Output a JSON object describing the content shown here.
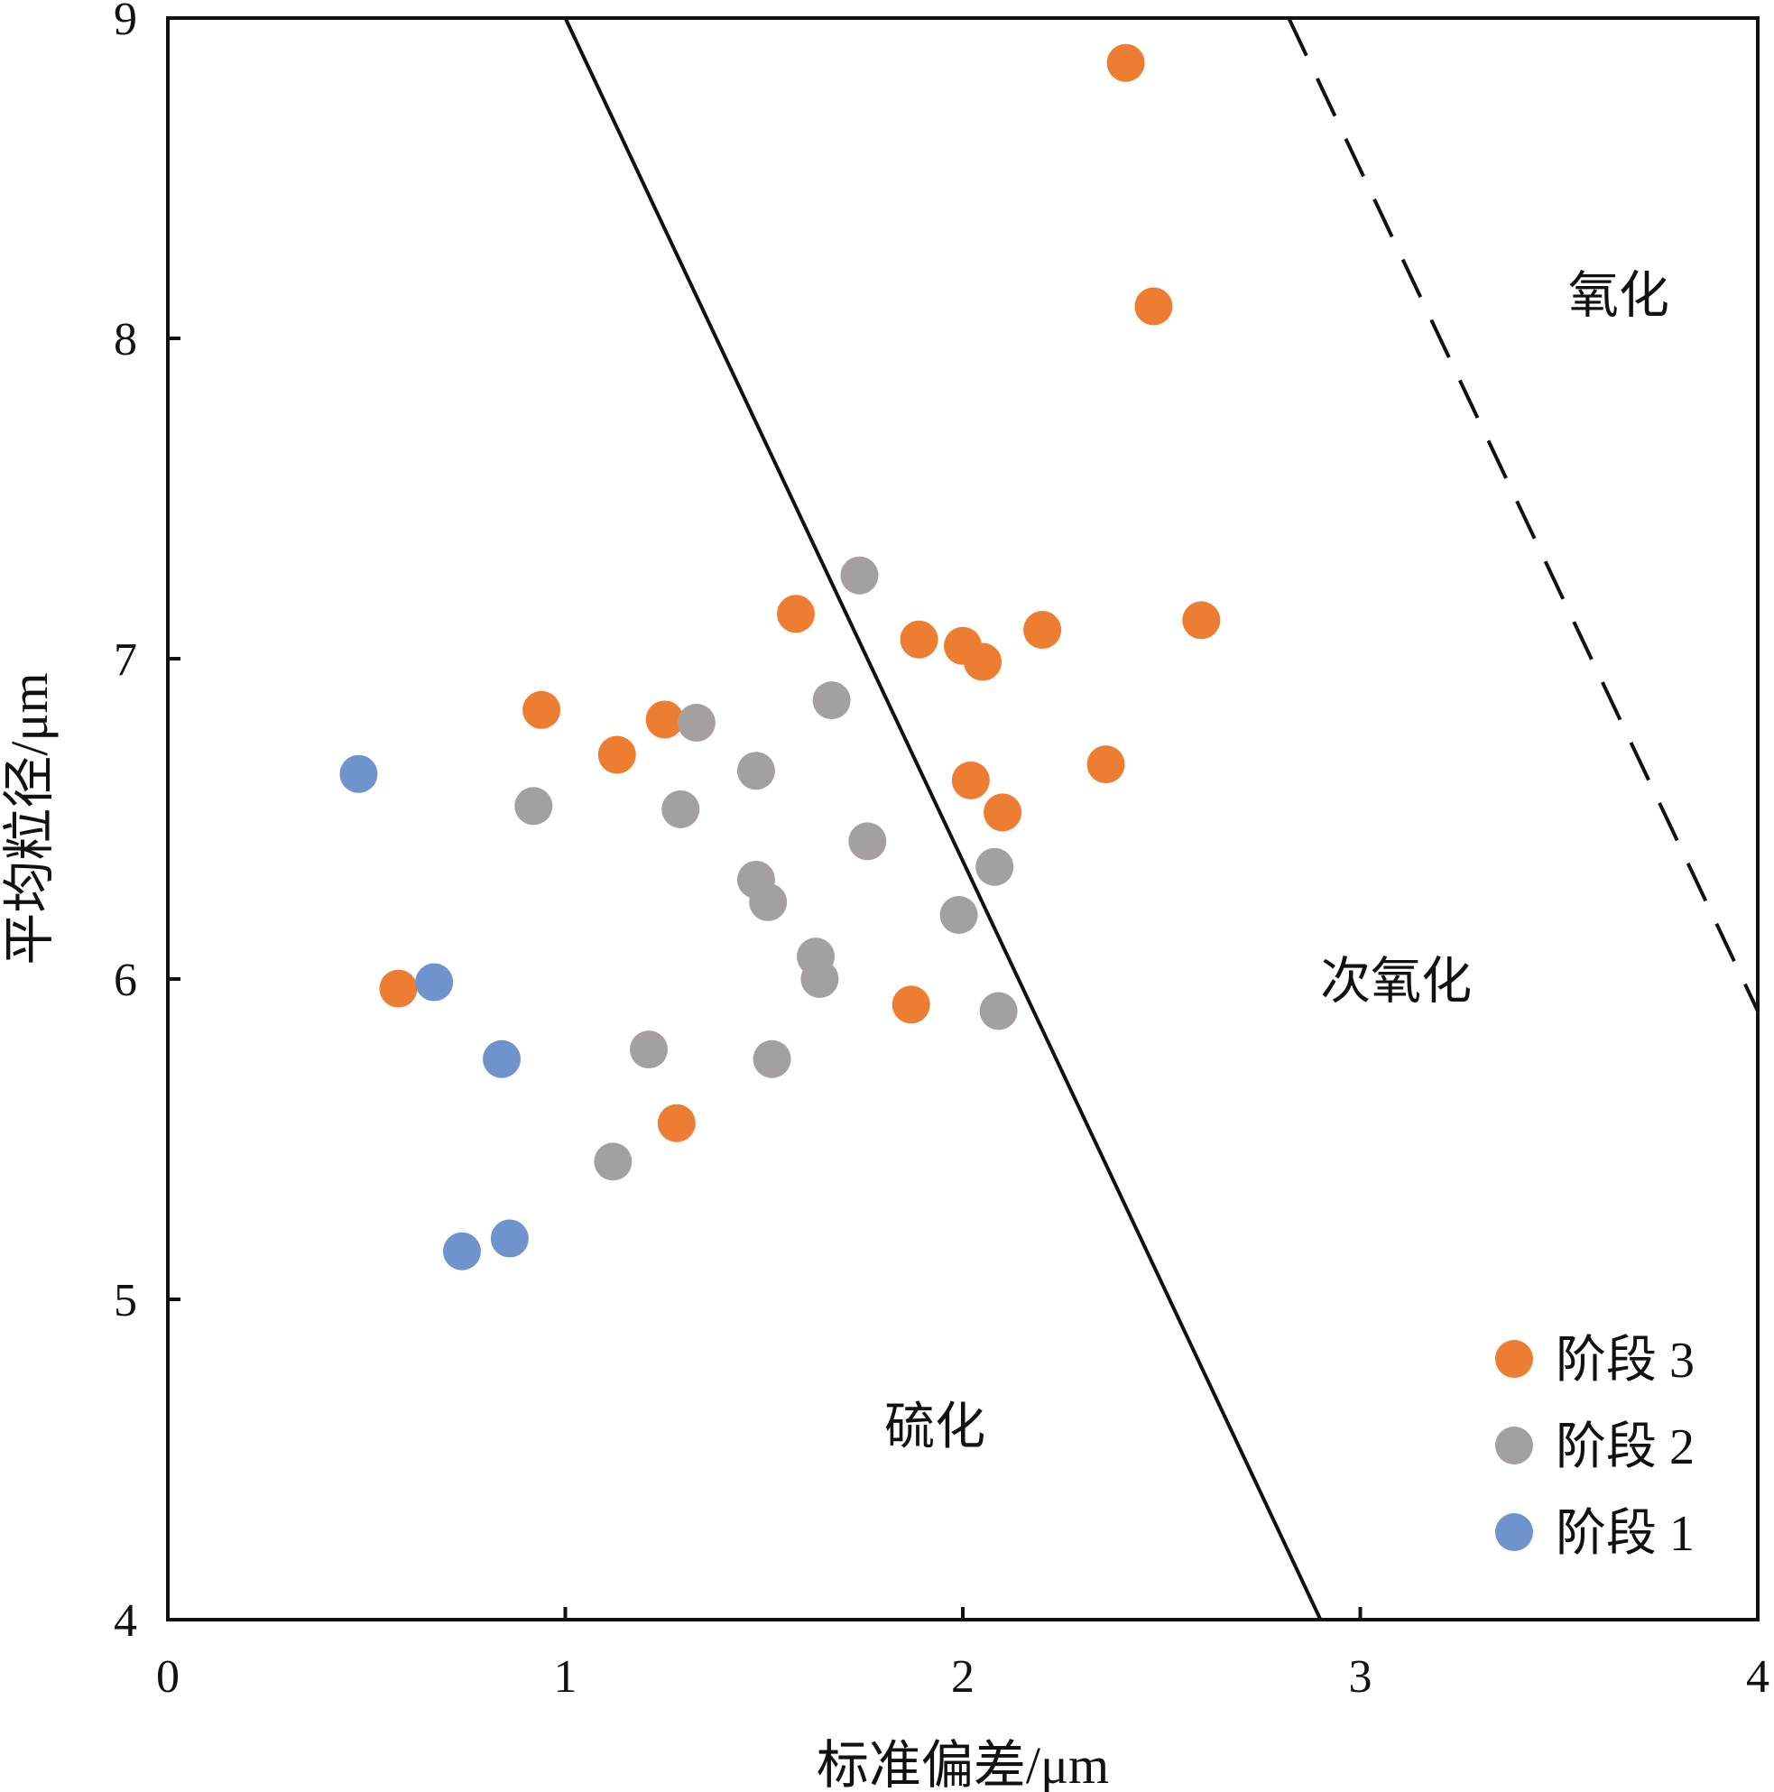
{
  "chart_data": {
    "type": "scatter",
    "xlabel": "标准偏差/μm",
    "ylabel": "平均粒径/μm",
    "xlim": [
      0,
      4
    ],
    "ylim": [
      4,
      9
    ],
    "x_ticks": [
      "0",
      "1",
      "2",
      "3",
      "4"
    ],
    "y_ticks": [
      "4",
      "5",
      "6",
      "7",
      "8",
      "9"
    ],
    "grid": false,
    "legend_position": "bottom-right",
    "colors": {
      "stage3": "#ED7D31",
      "stage2": "#A5A0A0",
      "stage1": "#6F93CC",
      "axis": "#111111"
    },
    "series": [
      {
        "name": "阶段 3",
        "color": "#ED7D31",
        "points": [
          [
            2.41,
            8.86
          ],
          [
            2.48,
            8.1
          ],
          [
            2.6,
            7.12
          ],
          [
            1.58,
            7.14
          ],
          [
            1.89,
            7.06
          ],
          [
            2.0,
            7.04
          ],
          [
            2.05,
            6.99
          ],
          [
            2.2,
            7.09
          ],
          [
            0.94,
            6.84
          ],
          [
            1.25,
            6.81
          ],
          [
            1.13,
            6.7
          ],
          [
            2.02,
            6.62
          ],
          [
            2.36,
            6.67
          ],
          [
            2.1,
            6.52
          ],
          [
            0.58,
            5.97
          ],
          [
            1.87,
            5.92
          ],
          [
            1.28,
            5.55
          ]
        ]
      },
      {
        "name": "阶段 2",
        "color": "#A5A0A0",
        "points": [
          [
            1.74,
            7.26
          ],
          [
            1.67,
            6.87
          ],
          [
            1.33,
            6.8
          ],
          [
            1.48,
            6.65
          ],
          [
            0.92,
            6.54
          ],
          [
            1.29,
            6.53
          ],
          [
            1.76,
            6.43
          ],
          [
            2.08,
            6.35
          ],
          [
            1.48,
            6.31
          ],
          [
            1.51,
            6.24
          ],
          [
            1.99,
            6.2
          ],
          [
            1.63,
            6.07
          ],
          [
            1.64,
            6.0
          ],
          [
            2.09,
            5.9
          ],
          [
            1.21,
            5.78
          ],
          [
            1.52,
            5.75
          ],
          [
            1.12,
            5.43
          ]
        ]
      },
      {
        "name": "阶段 1",
        "color": "#6F93CC",
        "points": [
          [
            0.48,
            6.64
          ],
          [
            0.67,
            5.99
          ],
          [
            0.84,
            5.75
          ],
          [
            0.74,
            5.15
          ],
          [
            0.86,
            5.19
          ]
        ]
      }
    ],
    "boundaries": [
      {
        "style": "solid",
        "from": [
          1.0,
          9.0
        ],
        "to": [
          2.9,
          4.0
        ]
      },
      {
        "style": "dashed",
        "from": [
          2.82,
          9.0
        ],
        "to": [
          4.0,
          5.9
        ]
      }
    ],
    "regions": [
      {
        "label": "硫化",
        "x": 1.93,
        "y": 4.55
      },
      {
        "label": "次氧化",
        "x": 3.09,
        "y": 5.94
      },
      {
        "label": "氧化",
        "x": 3.65,
        "y": 8.08
      }
    ]
  }
}
